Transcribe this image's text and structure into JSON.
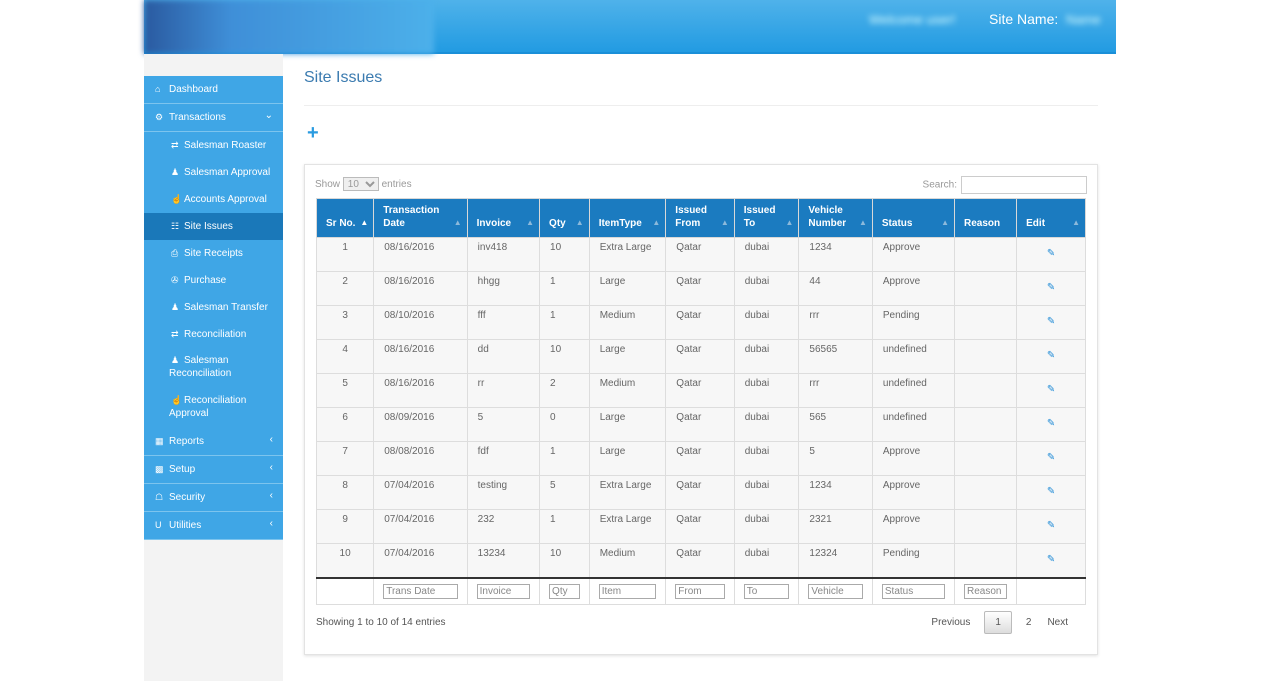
{
  "header": {
    "site_name_label": "Site Name:",
    "welcome_text": "Welcome user!",
    "site_value": "Name"
  },
  "sidebar": {
    "items": [
      {
        "label": "Dashboard",
        "icon": "home-icon"
      },
      {
        "label": "Transactions",
        "icon": "cogs-icon",
        "expanded": true
      },
      {
        "label": "Salesman Roaster",
        "icon": "exchange-icon",
        "sub": true
      },
      {
        "label": "Salesman Approval",
        "icon": "user-icon",
        "sub": true
      },
      {
        "label": "Accounts Approval",
        "icon": "thumbs-up-icon",
        "sub": true
      },
      {
        "label": "Site Issues",
        "icon": "sitemap-icon",
        "sub": true,
        "active": true
      },
      {
        "label": "Site Receipts",
        "icon": "file-icon",
        "sub": true
      },
      {
        "label": "Purchase",
        "icon": "cart-icon",
        "sub": true
      },
      {
        "label": "Salesman Transfer",
        "icon": "users-icon",
        "sub": true
      },
      {
        "label": "Reconciliation",
        "icon": "exchange-icon",
        "sub": true
      },
      {
        "label": "Salesman Reconciliation",
        "icon": "user-icon",
        "sub": true,
        "two": true
      },
      {
        "label": "Reconciliation Approval",
        "icon": "thumbs-up-icon",
        "sub": true,
        "two": true
      },
      {
        "label": "Reports",
        "icon": "table-icon",
        "collapsed": true
      },
      {
        "label": "Setup",
        "icon": "th-large-icon",
        "collapsed": true
      },
      {
        "label": "Security",
        "icon": "lock-icon",
        "collapsed": true
      },
      {
        "label": "Utilities",
        "icon": "underline-icon",
        "collapsed": true
      }
    ]
  },
  "page": {
    "title": "Site Issues",
    "add_icon": "plus-icon"
  },
  "table_controls": {
    "show_label": "Show",
    "page_size": "10",
    "entries_label": "entries",
    "search_label": "Search:",
    "search_value": ""
  },
  "table": {
    "columns": [
      "Sr No.",
      "Transaction Date",
      "Invoice",
      "Qty",
      "ItemType",
      "Issued From",
      "Issued To",
      "Vehicle Number",
      "Status",
      "Reason",
      "Edit"
    ],
    "rows": [
      [
        "1",
        "08/16/2016",
        "inv418",
        "10",
        "Extra Large",
        "Qatar",
        "dubai",
        "1234",
        "Approve",
        ""
      ],
      [
        "2",
        "08/16/2016",
        "hhgg",
        "1",
        "Large",
        "Qatar",
        "dubai",
        "44",
        "Approve",
        ""
      ],
      [
        "3",
        "08/10/2016",
        "fff",
        "1",
        "Medium",
        "Qatar",
        "dubai",
        "rrr",
        "Pending",
        ""
      ],
      [
        "4",
        "08/16/2016",
        "dd",
        "10",
        "Large",
        "Qatar",
        "dubai",
        "56565",
        "undefined",
        ""
      ],
      [
        "5",
        "08/16/2016",
        "rr",
        "2",
        "Medium",
        "Qatar",
        "dubai",
        "rrr",
        "undefined",
        ""
      ],
      [
        "6",
        "08/09/2016",
        "5",
        "0",
        "Large",
        "Qatar",
        "dubai",
        "565",
        "undefined",
        ""
      ],
      [
        "7",
        "08/08/2016",
        "fdf",
        "1",
        "Large",
        "Qatar",
        "dubai",
        "5",
        "Approve",
        ""
      ],
      [
        "8",
        "07/04/2016",
        "testing",
        "5",
        "Extra Large",
        "Qatar",
        "dubai",
        "1234",
        "Approve",
        ""
      ],
      [
        "9",
        "07/04/2016",
        "232",
        "1",
        "Extra Large",
        "Qatar",
        "dubai",
        "2321",
        "Approve",
        ""
      ],
      [
        "10",
        "07/04/2016",
        "13234",
        "10",
        "Medium",
        "Qatar",
        "dubai",
        "12324",
        "Pending",
        ""
      ]
    ],
    "filter_placeholders": [
      "",
      "Trans Date",
      "Invoice",
      "Qty",
      "Item",
      "From",
      "To",
      "Vehicle",
      "Status",
      "Reason",
      ""
    ]
  },
  "footer": {
    "info": "Showing 1 to 10 of 14 entries",
    "previous": "Previous",
    "pages": [
      "1",
      "2"
    ],
    "current_page": "1",
    "next": "Next"
  },
  "colors": {
    "header": "#229be2",
    "sidebar": "#3fa6e6",
    "sidebar_active": "#1a78b9",
    "table_header": "#1b7bc0"
  }
}
